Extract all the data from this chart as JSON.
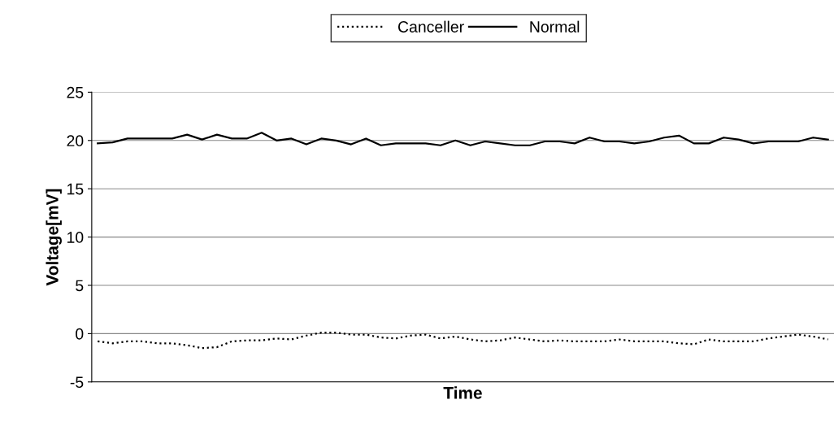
{
  "chart_data": {
    "type": "line",
    "xlabel": "Time",
    "ylabel": "Voltage[mV]",
    "categories": [
      null,
      null,
      null,
      null,
      null,
      null,
      null,
      null,
      null,
      null,
      null,
      null,
      null,
      null,
      null,
      null,
      null,
      null,
      null,
      null,
      null,
      null,
      null,
      null,
      null,
      null,
      null,
      null,
      null,
      null,
      null,
      null,
      null,
      null,
      null,
      null,
      null,
      null,
      null,
      null,
      null,
      null,
      null,
      null,
      null,
      null,
      null,
      null,
      null,
      null
    ],
    "series": [
      {
        "name": "Canceller",
        "color": "#000000",
        "line_style": "dotted",
        "values": [
          -0.8,
          -1.0,
          -0.8,
          -0.8,
          -1.0,
          -1.0,
          -1.2,
          -1.5,
          -1.4,
          -0.8,
          -0.7,
          -0.7,
          -0.5,
          -0.6,
          -0.2,
          0.1,
          0.1,
          -0.1,
          -0.1,
          -0.4,
          -0.5,
          -0.2,
          -0.1,
          -0.5,
          -0.3,
          -0.6,
          -0.8,
          -0.7,
          -0.4,
          -0.6,
          -0.8,
          -0.7,
          -0.8,
          -0.8,
          -0.8,
          -0.6,
          -0.8,
          -0.8,
          -0.8,
          -1.0,
          -1.1,
          -0.6,
          -0.8,
          -0.8,
          -0.8,
          -0.5,
          -0.3,
          -0.1,
          -0.3,
          -0.6
        ]
      },
      {
        "name": "Normal",
        "color": "#000000",
        "line_style": "solid",
        "values": [
          19.7,
          19.8,
          20.2,
          20.2,
          20.2,
          20.2,
          20.6,
          20.1,
          20.6,
          20.2,
          20.2,
          20.8,
          20.0,
          20.2,
          19.6,
          20.2,
          20.0,
          19.6,
          20.2,
          19.5,
          19.7,
          19.7,
          19.7,
          19.5,
          20.0,
          19.5,
          19.9,
          19.7,
          19.5,
          19.5,
          19.9,
          19.9,
          19.7,
          20.3,
          19.9,
          19.9,
          19.7,
          19.9,
          20.3,
          20.5,
          19.7,
          19.7,
          20.3,
          20.1,
          19.7,
          19.9,
          19.9,
          19.9,
          20.3,
          20.1
        ]
      }
    ],
    "ylim": [
      -5,
      25
    ],
    "yticks": [
      -5,
      0,
      5,
      10,
      15,
      20,
      25
    ],
    "grid": "y",
    "legend": "top",
    "tick_labels": "y"
  }
}
